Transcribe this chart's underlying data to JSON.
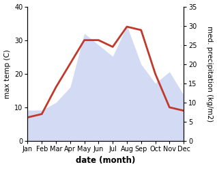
{
  "months": [
    "Jan",
    "Feb",
    "Mar",
    "Apr",
    "May",
    "Jun",
    "Jul",
    "Aug",
    "Sep",
    "Oct",
    "Nov",
    "Dec"
  ],
  "temperature": [
    7,
    8,
    16,
    23,
    30,
    30,
    28,
    34,
    33,
    20,
    10,
    9
  ],
  "precipitation": [
    8,
    8,
    10,
    14,
    28,
    25,
    22,
    30,
    20,
    15,
    18,
    12
  ],
  "temp_color": "#c0392b",
  "precip_fill_color": "#c5cef0",
  "precip_alpha": 0.75,
  "background_color": "#ffffff",
  "xlabel": "date (month)",
  "ylabel_left": "max temp (C)",
  "ylabel_right": "med. precipitation (kg/m2)",
  "ylim_left": [
    0,
    40
  ],
  "ylim_right": [
    0,
    35
  ],
  "yticks_left": [
    0,
    10,
    20,
    30,
    40
  ],
  "yticks_right": [
    0,
    5,
    10,
    15,
    20,
    25,
    30,
    35
  ],
  "temp_linewidth": 2.0,
  "xlabel_fontsize": 8.5,
  "ylabel_fontsize": 7.5,
  "tick_fontsize": 7.0,
  "figsize": [
    3.18,
    2.47
  ],
  "dpi": 100
}
